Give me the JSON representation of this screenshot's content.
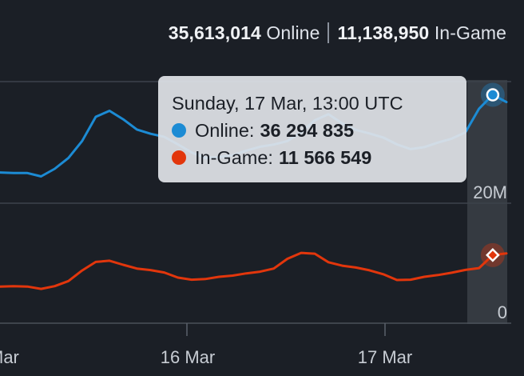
{
  "summary": {
    "online_value": "35,613,014",
    "online_label": "Online",
    "ingame_value": "11,138,950",
    "ingame_label": "In-Game"
  },
  "tooltip": {
    "title": "Sunday, 17 Mar, 13:00 UTC",
    "online_label": "Online:",
    "online_value": "36 294 835",
    "ingame_label": "In-Game:",
    "ingame_value": "11 566 549"
  },
  "chart_data": {
    "type": "line",
    "x_tick_labels": [
      "Mar",
      "16 Mar",
      "17 Mar"
    ],
    "y_tick_labels": [
      "20M",
      "0"
    ],
    "ylim": [
      0,
      40000000
    ],
    "grid": true,
    "colors": {
      "online": "#1c8bd4",
      "ingame": "#e2360c"
    },
    "series": [
      {
        "name": "Online",
        "values": [
          33040000,
          32990000,
          32980000,
          32650000,
          33400000,
          34480000,
          36150000,
          38550000,
          39140000,
          38300000,
          37290000,
          36870000,
          36560000,
          35820000,
          35020000,
          34480000,
          34550000,
          34750000,
          35200000,
          35590000,
          35800000,
          36150000,
          37000000,
          38200000,
          38800000,
          37900000,
          37250000,
          36900000,
          36500000,
          35820000,
          35350000,
          35550000,
          36000000,
          36390000,
          37000000,
          39350000,
          40720000,
          40000000
        ]
      },
      {
        "name": "In-Game",
        "values": [
          11180000,
          11200000,
          11180000,
          11040000,
          11200000,
          11500000,
          12120000,
          12620000,
          12690000,
          12450000,
          12230000,
          12140000,
          12000000,
          11700000,
          11580000,
          11620000,
          11750000,
          11820000,
          11950000,
          12050000,
          12230000,
          12800000,
          13150000,
          13100000,
          12600000,
          12400000,
          12290000,
          12130000,
          11900000,
          11560000,
          11580000,
          11750000,
          11850000,
          11990000,
          12150000,
          12260000,
          13020000,
          13120000
        ]
      }
    ]
  }
}
